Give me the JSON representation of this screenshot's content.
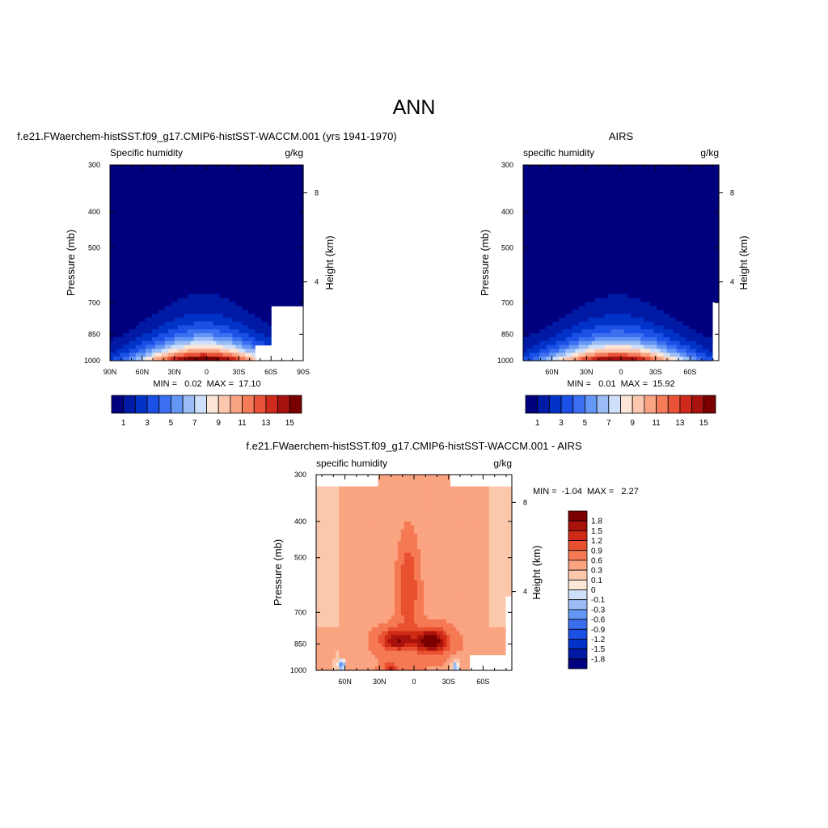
{
  "page_title": "ANN",
  "colors": {
    "abs_scale": [
      "#00007f",
      "#001aa5",
      "#0032c8",
      "#1a50e6",
      "#3c6ef0",
      "#6496f5",
      "#9bbcf7",
      "#cfe1fa",
      "#fde6d6",
      "#fcc7ae",
      "#fba484",
      "#f57c59",
      "#e85237",
      "#cf2a1c",
      "#a8120f",
      "#7a0000"
    ],
    "diff_scale": [
      "#00007f",
      "#001aa5",
      "#0032c8",
      "#1a50e6",
      "#3c6ef0",
      "#6496f5",
      "#9bbcf7",
      "#cfe1fa",
      "#fde8d7",
      "#fcc8ac",
      "#fba482",
      "#f57a54",
      "#e8502f",
      "#cf2a16",
      "#a8120a",
      "#7a0000"
    ]
  },
  "chart_data": [
    {
      "id": "model",
      "type": "contour",
      "title": "f.e21.FWaerchem-histSST.f09_g17.CMIP6-histSST-WACCM.001 (yrs 1941-1970)",
      "left_string": "Specific humidity",
      "right_string": "g/kg",
      "ylabel": "Pressure (mb)",
      "ylabel_right": "Height (km)",
      "x_ticks": [
        "90N",
        "60N",
        "30N",
        "0",
        "30S",
        "60S",
        "90S"
      ],
      "x_values": [
        90,
        60,
        30,
        0,
        -30,
        -60,
        -90
      ],
      "y_ticks": [
        {
          "label": "300",
          "p": 300
        },
        {
          "label": "400",
          "p": 400
        },
        {
          "label": "500",
          "p": 500
        },
        {
          "label": "700",
          "p": 700
        },
        {
          "label": "850",
          "p": 850
        },
        {
          "label": "1000",
          "p": 1000
        }
      ],
      "height_ticks": [
        {
          "label": "8",
          "p": 356
        },
        {
          "label": "4",
          "p": 616
        }
      ],
      "xlim": [
        90,
        -90
      ],
      "ylim": [
        300,
        1000
      ],
      "min_max": "MIN =   0.02  MAX =  17.10",
      "min": 0.02,
      "max": 17.1,
      "levels": [
        1,
        2,
        3,
        4,
        5,
        6,
        7,
        8,
        9,
        10,
        11,
        12,
        13,
        14,
        15
      ],
      "colorbar_labels": [
        "1",
        "3",
        "5",
        "7",
        "9",
        "11",
        "13",
        "15"
      ]
    },
    {
      "id": "obs",
      "type": "contour",
      "title": "AIRS",
      "left_string": "specific humidity",
      "right_string": "g/kg",
      "ylabel": "Pressure (mb)",
      "ylabel_right": "Height (km)",
      "x_ticks": [
        "60N",
        "30N",
        "0",
        "30S",
        "60S"
      ],
      "x_values": [
        60,
        30,
        0,
        -30,
        -60
      ],
      "y_ticks": [
        {
          "label": "300",
          "p": 300
        },
        {
          "label": "400",
          "p": 400
        },
        {
          "label": "500",
          "p": 500
        },
        {
          "label": "700",
          "p": 700
        },
        {
          "label": "850",
          "p": 850
        },
        {
          "label": "1000",
          "p": 1000
        }
      ],
      "height_ticks": [
        {
          "label": "8",
          "p": 356
        },
        {
          "label": "4",
          "p": 616
        }
      ],
      "xlim": [
        85,
        -85
      ],
      "ylim": [
        300,
        1000
      ],
      "min_max": "MIN =   0.01  MAX =  15.92",
      "min": 0.01,
      "max": 15.92,
      "levels": [
        1,
        2,
        3,
        4,
        5,
        6,
        7,
        8,
        9,
        10,
        11,
        12,
        13,
        14,
        15
      ],
      "colorbar_labels": [
        "1",
        "3",
        "5",
        "7",
        "9",
        "11",
        "13",
        "15"
      ]
    },
    {
      "id": "diff",
      "type": "contour",
      "title": "f.e21.FWaerchem-histSST.f09_g17.CMIP6-histSST-WACCM.001 - AIRS",
      "left_string": "specific humidity",
      "right_string": "g/kg",
      "ylabel": "Pressure (mb)",
      "ylabel_right": "Height (km)",
      "x_ticks": [
        "60N",
        "30N",
        "0",
        "30S",
        "60S"
      ],
      "x_values": [
        60,
        30,
        0,
        -30,
        -60
      ],
      "y_ticks": [
        {
          "label": "300",
          "p": 300
        },
        {
          "label": "400",
          "p": 400
        },
        {
          "label": "500",
          "p": 500
        },
        {
          "label": "700",
          "p": 700
        },
        {
          "label": "850",
          "p": 850
        },
        {
          "label": "1000",
          "p": 1000
        }
      ],
      "height_ticks": [
        {
          "label": "8",
          "p": 356
        },
        {
          "label": "4",
          "p": 616
        }
      ],
      "xlim": [
        85,
        -85
      ],
      "ylim": [
        300,
        1000
      ],
      "min_max": "MIN =  -1.04  MAX =   2.27",
      "min": -1.04,
      "max": 2.27,
      "levels": [
        -1.8,
        -1.5,
        -1.2,
        -0.9,
        -0.6,
        -0.3,
        -0.1,
        0,
        0.1,
        0.3,
        0.6,
        0.9,
        1.2,
        1.5,
        1.8
      ],
      "colorbar_labels": [
        "1.8",
        "1.5",
        "1.2",
        "0.9",
        "0.6",
        "0.3",
        "0.1",
        "0",
        "-0.1",
        "-0.3",
        "-0.6",
        "-0.9",
        "-1.2",
        "-1.5",
        "-1.8"
      ]
    }
  ]
}
